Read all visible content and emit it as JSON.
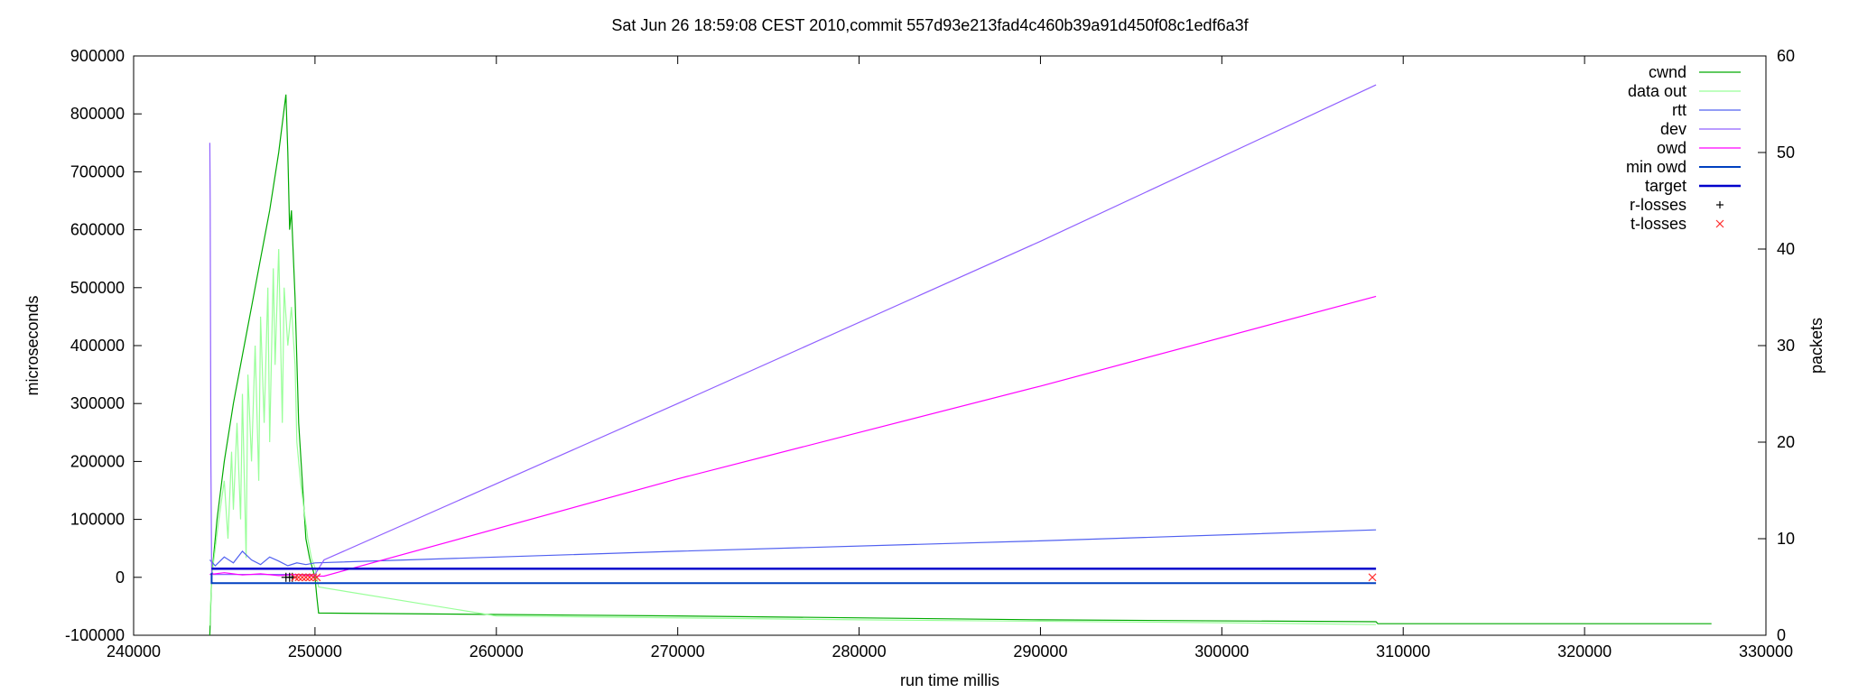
{
  "chart_data": {
    "type": "line",
    "title": "Sat Jun 26 18:59:08 CEST 2010,commit 557d93e213fad4c460b39a91d450f08c1edf6a3f",
    "xlabel": "run time millis",
    "ylabel": "microseconds",
    "y2label": "packets",
    "xlim": [
      240000,
      330000
    ],
    "ylim": [
      -100000,
      900000
    ],
    "y2lim": [
      0,
      60
    ],
    "grid": false,
    "legend_position": "top-right",
    "x_ticks": [
      "240000",
      "250000",
      "260000",
      "270000",
      "280000",
      "290000",
      "300000",
      "310000",
      "320000",
      "330000"
    ],
    "y_ticks": [
      "-100000",
      "0",
      "100000",
      "200000",
      "300000",
      "400000",
      "500000",
      "600000",
      "700000",
      "800000",
      "900000"
    ],
    "y2_ticks": [
      "0",
      "10",
      "20",
      "30",
      "40",
      "50",
      "60"
    ],
    "series": [
      {
        "name": "cwnd",
        "axis": "y2",
        "color": "#00aa00",
        "style": "line",
        "x": [
          244200,
          244300,
          244600,
          245000,
          245500,
          246000,
          246500,
          247000,
          247500,
          248000,
          248400,
          248500,
          248600,
          248700,
          248900,
          249100,
          249300,
          249500,
          249700,
          250000,
          250100,
          250200,
          270000,
          290000,
          308500,
          308600,
          327000
        ],
        "y": [
          0,
          6,
          12,
          18,
          24,
          29,
          34,
          39,
          44,
          50,
          56,
          50,
          42,
          44,
          35,
          22,
          16,
          10,
          8,
          6,
          4,
          2.3,
          2,
          1.6,
          1.4,
          1.2,
          1.2
        ]
      },
      {
        "name": "data out",
        "axis": "y2",
        "color": "#99ff99",
        "style": "line",
        "x": [
          244200,
          244300,
          244500,
          244700,
          245000,
          245200,
          245400,
          245500,
          245700,
          245900,
          246000,
          246200,
          246300,
          246500,
          246700,
          246900,
          247000,
          247200,
          247400,
          247500,
          247700,
          247800,
          248000,
          248200,
          248300,
          248500,
          248700,
          248900,
          249000,
          249200,
          249400,
          249600,
          249800,
          250000,
          250200,
          260000,
          280000,
          300000,
          308500
        ],
        "y": [
          1,
          6,
          9,
          12,
          16,
          10,
          19,
          13,
          22,
          12,
          25,
          8,
          27,
          18,
          30,
          16,
          33,
          22,
          36,
          20,
          38,
          28,
          40,
          22,
          36,
          30,
          34,
          28,
          20,
          16,
          13,
          10,
          8,
          7,
          5,
          2,
          1.6,
          1.3,
          1.1
        ]
      },
      {
        "name": "rtt",
        "axis": "y",
        "color": "#5060f0",
        "style": "line",
        "x": [
          244200,
          244500,
          245000,
          245500,
          246000,
          246500,
          247000,
          247500,
          248000,
          248500,
          249000,
          249500,
          250000,
          270000,
          290000,
          308500
        ],
        "y": [
          30000,
          20000,
          35000,
          25000,
          45000,
          30000,
          22000,
          35000,
          28000,
          20000,
          25000,
          22000,
          25000,
          45000,
          63000,
          82000
        ]
      },
      {
        "name": "dev",
        "axis": "y",
        "color": "#9060ff",
        "style": "line",
        "x": [
          244200,
          244220,
          244260,
          244300,
          244400,
          246000,
          248000,
          250000,
          250500,
          270000,
          290000,
          308500
        ],
        "y": [
          750000,
          650000,
          200000,
          10000,
          5000,
          5000,
          5000,
          5000,
          30000,
          300000,
          580000,
          850000
        ]
      },
      {
        "name": "owd",
        "axis": "y",
        "color": "#ff00ff",
        "style": "line",
        "x": [
          244200,
          245000,
          246000,
          247000,
          248000,
          249000,
          250000,
          250500,
          270000,
          290000,
          308500
        ],
        "y": [
          5000,
          8000,
          4000,
          6000,
          3000,
          5000,
          2000,
          2000,
          170000,
          330000,
          485000
        ]
      },
      {
        "name": "min owd",
        "axis": "y",
        "color": "#0040c0",
        "style": "line",
        "x": [
          244300,
          244300,
          308500
        ],
        "y": [
          8000,
          -10000,
          -10000
        ]
      },
      {
        "name": "target",
        "axis": "y",
        "color": "#0000cc",
        "style": "line",
        "x": [
          244300,
          308500
        ],
        "y": [
          15000,
          15000
        ]
      },
      {
        "name": "r-losses",
        "axis": "y",
        "color": "#000000",
        "style": "plus",
        "x": [
          248400,
          248600,
          248750
        ],
        "y": [
          0,
          0,
          0
        ]
      },
      {
        "name": "t-losses",
        "axis": "y",
        "color": "#ff3030",
        "style": "cross",
        "x": [
          248900,
          249100,
          249300,
          249500,
          249700,
          249900,
          250100,
          308300
        ],
        "y": [
          0,
          0,
          0,
          0,
          0,
          0,
          0,
          0
        ]
      }
    ]
  }
}
